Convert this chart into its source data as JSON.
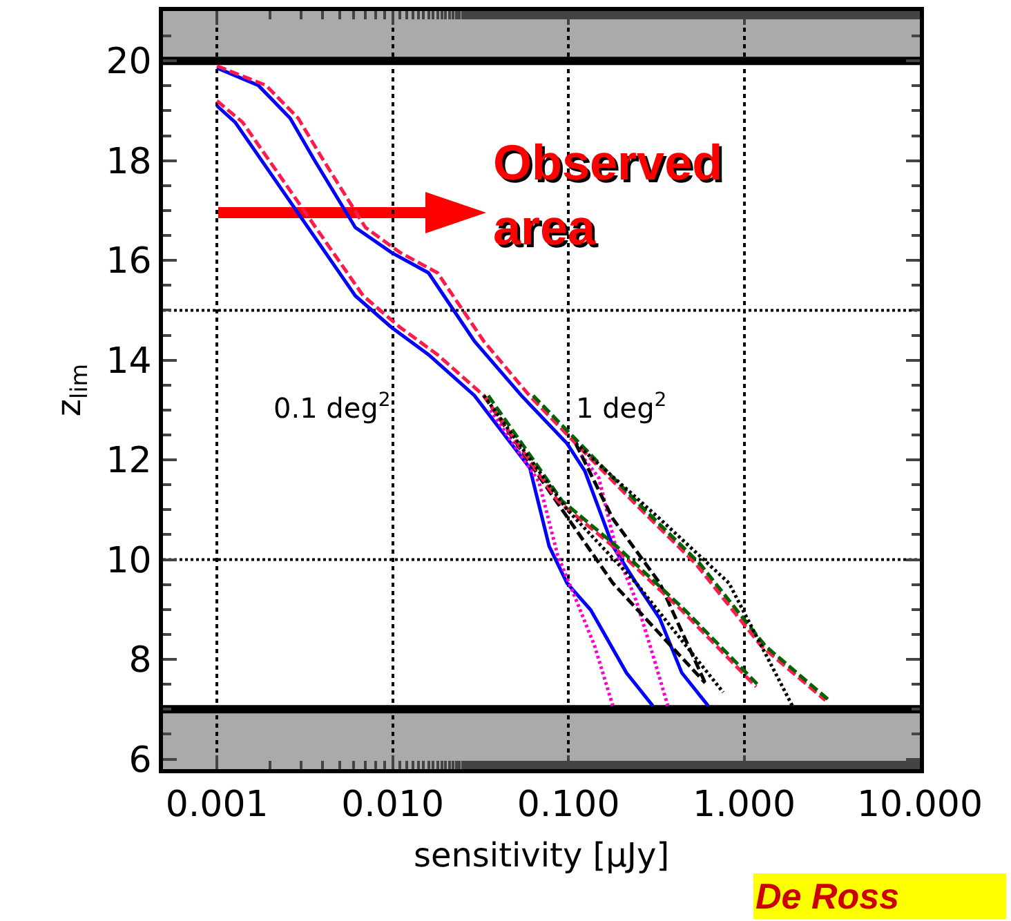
{
  "chart_data": {
    "type": "line",
    "xlabel": "sensitivity [μJy]",
    "ylabel": "z$_{lim}$",
    "log": "x",
    "grid": "x",
    "xlim": [
      0.000493,
      10
    ],
    "ylim": [
      5.8,
      21
    ],
    "xticks": [
      {
        "value": 0.001,
        "label": "0.001"
      },
      {
        "value": 0.01,
        "label": "0.010"
      },
      {
        "value": 0.1,
        "label": "0.100"
      },
      {
        "value": 1,
        "label": "1.000"
      },
      {
        "value": 10,
        "label": "10.000"
      }
    ],
    "yticks": [
      6,
      8,
      10,
      12,
      14,
      16,
      18,
      20
    ],
    "bands": [
      {
        "axis": "y",
        "from": 20,
        "to": 21,
        "color": "#aaaaaa"
      },
      {
        "axis": "y",
        "from": 5.8,
        "to": 7,
        "color": "#aaaaaa"
      }
    ],
    "ref_lines": [
      {
        "axis": "y",
        "value": 20,
        "color": "#000000",
        "line_style": "solid"
      },
      {
        "axis": "y",
        "value": 7,
        "color": "#000000",
        "line_style": "solid"
      },
      {
        "axis": "y",
        "value": 15,
        "color": "#000000",
        "line_style": "dotted"
      },
      {
        "axis": "y",
        "value": 10,
        "color": "#000000",
        "line_style": "dotted"
      }
    ],
    "annotations": [
      "Observed\narea",
      "De Ross",
      "0.1 deg$^{2}$",
      "1 deg$^{2}$"
    ],
    "series": [
      {
        "color": "#0000ff",
        "line_style": "solid",
        "x": [
          0.001,
          0.00172,
          0.00261,
          0.00356,
          0.00613,
          0.00982,
          0.016,
          0.0292,
          0.054,
          0.0982,
          0.124,
          0.179,
          0.243,
          0.331,
          0.442,
          0.624
        ],
        "values": [
          19.86,
          19.51,
          18.85,
          18.03,
          16.66,
          16.16,
          15.75,
          14.38,
          13.29,
          12.33,
          11.78,
          10.27,
          9.53,
          8.82,
          7.73,
          7.07
        ]
      },
      {
        "color": "#ff00cc",
        "line_style": "dotted",
        "x": [
          0.118,
          0.149,
          0.191,
          0.243,
          0.292,
          0.368
        ],
        "values": [
          12.1,
          11.64,
          10.08,
          9.18,
          8.27,
          7.07
        ]
      },
      {
        "color": "#000000",
        "line_style": "dashed",
        "x": [
          0.11,
          0.141,
          0.179,
          0.331,
          0.6
        ],
        "values": [
          12.33,
          11.56,
          10.82,
          9.53,
          7.53
        ]
      },
      {
        "color": "#ff1a4d",
        "line_style": "dashed",
        "x": [
          0.001,
          0.0019,
          0.0029,
          0.004,
          0.007,
          0.011,
          0.018,
          0.033,
          0.06,
          0.11,
          0.243,
          0.53,
          1.25,
          2.9
        ],
        "values": [
          19.9,
          19.51,
          18.85,
          18.03,
          16.66,
          16.16,
          15.75,
          14.38,
          13.29,
          12.33,
          11.1,
          9.92,
          8.27,
          7.18
        ]
      },
      {
        "color": "#006400",
        "line_style": "dashed",
        "x": [
          0.063,
          0.116,
          0.255,
          0.56,
          1.32,
          3.05
        ],
        "values": [
          13.29,
          12.33,
          11.1,
          9.92,
          8.27,
          7.18
        ]
      },
      {
        "color": "#000000",
        "line_style": "dotted",
        "x": [
          0.11,
          0.331,
          0.82,
          1.88
        ],
        "values": [
          12.33,
          10.82,
          9.53,
          7.07
        ]
      },
      {
        "color": "#0000ff",
        "line_style": "solid",
        "x": [
          0.001,
          0.00127,
          0.00613,
          0.00982,
          0.016,
          0.0292,
          0.0603,
          0.0777,
          0.0982,
          0.134,
          0.214,
          0.302
        ],
        "values": [
          19.1,
          18.77,
          15.29,
          14.66,
          14.11,
          13.29,
          11.84,
          10.27,
          9.53,
          8.99,
          7.73,
          7.07
        ]
      },
      {
        "color": "#ff00cc",
        "line_style": "dotted",
        "x": [
          0.036,
          0.068,
          0.087,
          0.111,
          0.141,
          0.179
        ],
        "values": [
          13.0,
          11.56,
          10.08,
          9.18,
          8.27,
          7.07
        ]
      },
      {
        "color": "#000000",
        "line_style": "dashed",
        "x": [
          0.033,
          0.078,
          0.179,
          0.6
        ],
        "values": [
          13.29,
          11.37,
          9.53,
          7.53
        ]
      },
      {
        "color": "#ff1a4d",
        "line_style": "dashed",
        "x": [
          0.001,
          0.0014,
          0.0068,
          0.011,
          0.018,
          0.033,
          0.087,
          0.179,
          0.44,
          1.17
        ],
        "values": [
          19.2,
          18.77,
          15.29,
          14.66,
          14.11,
          13.29,
          11.18,
          10.27,
          8.99,
          7.45
        ]
      },
      {
        "color": "#006400",
        "line_style": "dashed",
        "x": [
          0.035,
          0.092,
          0.188,
          0.46,
          1.23
        ],
        "values": [
          13.29,
          11.18,
          10.27,
          8.99,
          7.45
        ]
      },
      {
        "color": "#000000",
        "line_style": "dotted",
        "x": [
          0.033,
          0.098,
          0.243,
          0.76
        ],
        "values": [
          13.29,
          11.01,
          9.53,
          7.34
        ]
      }
    ]
  }
}
